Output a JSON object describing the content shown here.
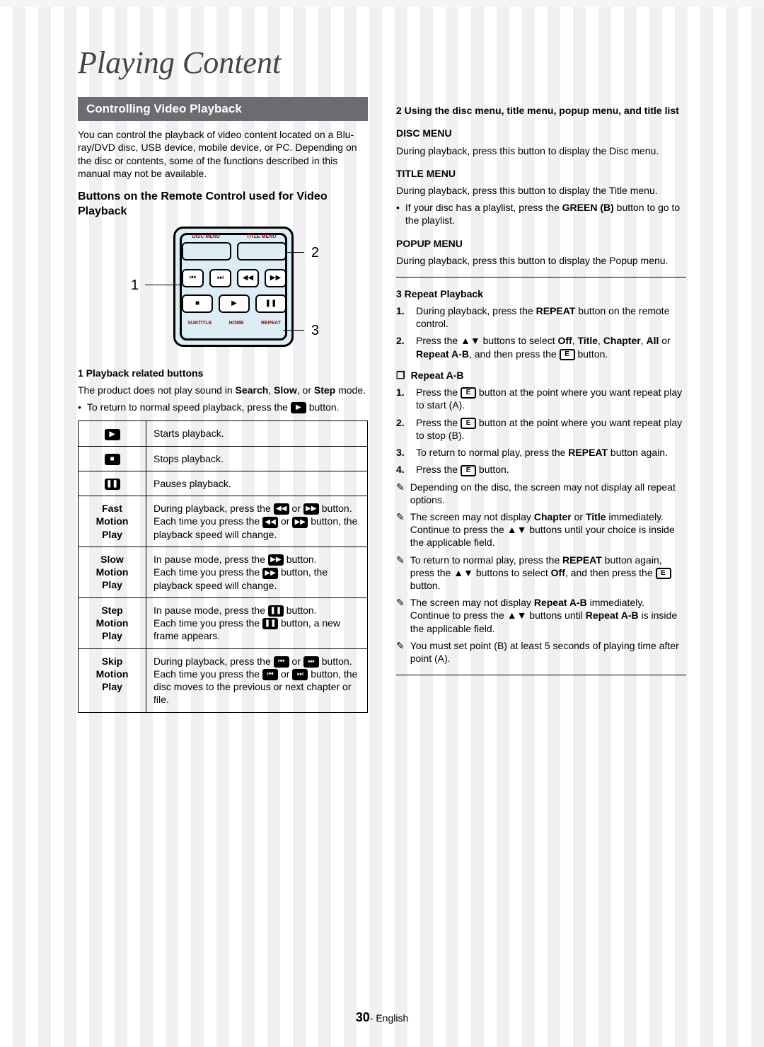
{
  "chapter_title": "Playing Content",
  "section_bar": "Controlling Video Playback",
  "intro": "You can control the playback of video content located on a Blu-ray/DVD disc, USB device, mobile device, or PC. Depending on the disc or contents, some of the functions described in this manual may not be available.",
  "sub_heading": "Buttons on the Remote Control used for Video Playback",
  "remote": {
    "row1_labels": [
      "DISC MENU",
      "TITLE MENU"
    ],
    "row4_labels": [
      "SUBTITLE",
      "HOME",
      "REPEAT"
    ],
    "callouts": {
      "one": "1",
      "two": "2",
      "three": "3"
    }
  },
  "group1": {
    "title": "1  Playback related buttons",
    "p1_pre": "The product does not play sound in ",
    "p1_b1": "Search",
    "p1_mid1": ", ",
    "p1_b2": "Slow",
    "p1_mid2": ", or ",
    "p1_b3": "Step",
    "p1_post": " mode.",
    "bullet_pre": "To return to normal speed playback, press the ",
    "bullet_post": " button."
  },
  "tbl": {
    "r1_desc": "Starts playback.",
    "r2_desc": "Stops playback.",
    "r3_desc": "Pauses playback.",
    "r4_label": "Fast\nMotion\nPlay",
    "r4_a": "During playback, press the ",
    "r4_b": " or ",
    "r4_c": " button.",
    "r4_d": "Each time you press the ",
    "r4_e": " or ",
    "r4_f": " button, the playback speed will change.",
    "r5_label": "Slow\nMotion\nPlay",
    "r5_a": "In pause mode, press the ",
    "r5_b": " button.",
    "r5_c": "Each time you press the ",
    "r5_d": " button, the playback speed will change.",
    "r6_label": "Step\nMotion\nPlay",
    "r6_a": "In pause mode, press the ",
    "r6_b": " button.",
    "r6_c": "Each time you press the ",
    "r6_d": " button, a new frame appears.",
    "r7_label": "Skip\nMotion\nPlay",
    "r7_a": "During playback, press the ",
    "r7_b": " or ",
    "r7_c": " button.",
    "r7_d": "Each time you press the ",
    "r7_e": " or ",
    "r7_f": " button, the disc moves to the previous or next chapter or file."
  },
  "group2": {
    "title": "2  Using the disc menu, title menu, popup menu, and title list",
    "disc_h": "DISC MENU",
    "disc_p": "During playback, press this button to display the Disc menu.",
    "title_h": "TITLE MENU",
    "title_p": "During playback, press this button to display the Title menu.",
    "title_bullet_pre": "If your disc has a playlist, press the ",
    "title_bullet_b": "GREEN (B)",
    "title_bullet_post": " button to go to the playlist.",
    "popup_h": "POPUP MENU",
    "popup_p": "During playback, press this button to display the Popup menu."
  },
  "group3": {
    "title": "3  Repeat Playback",
    "s1_a": "During playback, press the ",
    "s1_b": "REPEAT",
    "s1_c": " button on the remote control.",
    "s2_a": "Press the ▲▼ buttons to select ",
    "s2_off": "Off",
    "s2_sep1": ", ",
    "s2_title": "Title",
    "s2_sep2": ", ",
    "s2_chapter": "Chapter",
    "s2_sep3": ", ",
    "s2_all": "All",
    "s2_or": " or ",
    "s2_rab": "Repeat A-B",
    "s2_post": ", and then press the ",
    "s2_end": " button.",
    "rab_h": "Repeat A-B",
    "rab1_a": "Press the ",
    "rab1_b": " button at the point where you want repeat play to start (A).",
    "rab2_a": "Press the ",
    "rab2_b": " button at the point where you want repeat play to stop (B).",
    "rab3_a": "To return to normal play, press the ",
    "rab3_b": "REPEAT",
    "rab3_c": " button again.",
    "rab4_a": "Press the ",
    "rab4_b": " button.",
    "n1": "Depending on the disc, the screen may not display all repeat options.",
    "n2_a": "The screen may not display ",
    "n2_b": "Chapter",
    "n2_c": " or ",
    "n2_d": "Title",
    "n2_e": " immediately. Continue to press the ▲▼ buttons until your choice is inside the applicable field.",
    "n3_a": "To return to normal play, press the ",
    "n3_b": "REPEAT",
    "n3_c": " button again, press the ▲▼ buttons to select ",
    "n3_d": "Off",
    "n3_e": ", and then press the ",
    "n3_f": " button.",
    "n4_a": "The screen may not display ",
    "n4_b": "Repeat A-B",
    "n4_c": " immediately. Continue to press the ▲▼ buttons until ",
    "n4_d": "Repeat A-B",
    "n4_e": " is inside the applicable field.",
    "n5": "You must set point (B) at least 5 seconds of playing time after point (A)."
  },
  "footer": {
    "page": "30",
    "lang": "- English"
  },
  "colors": {
    "bar_bg": "#6a6c70",
    "remote_bg": "#dcedf6",
    "remote_label": "#8a1010"
  }
}
